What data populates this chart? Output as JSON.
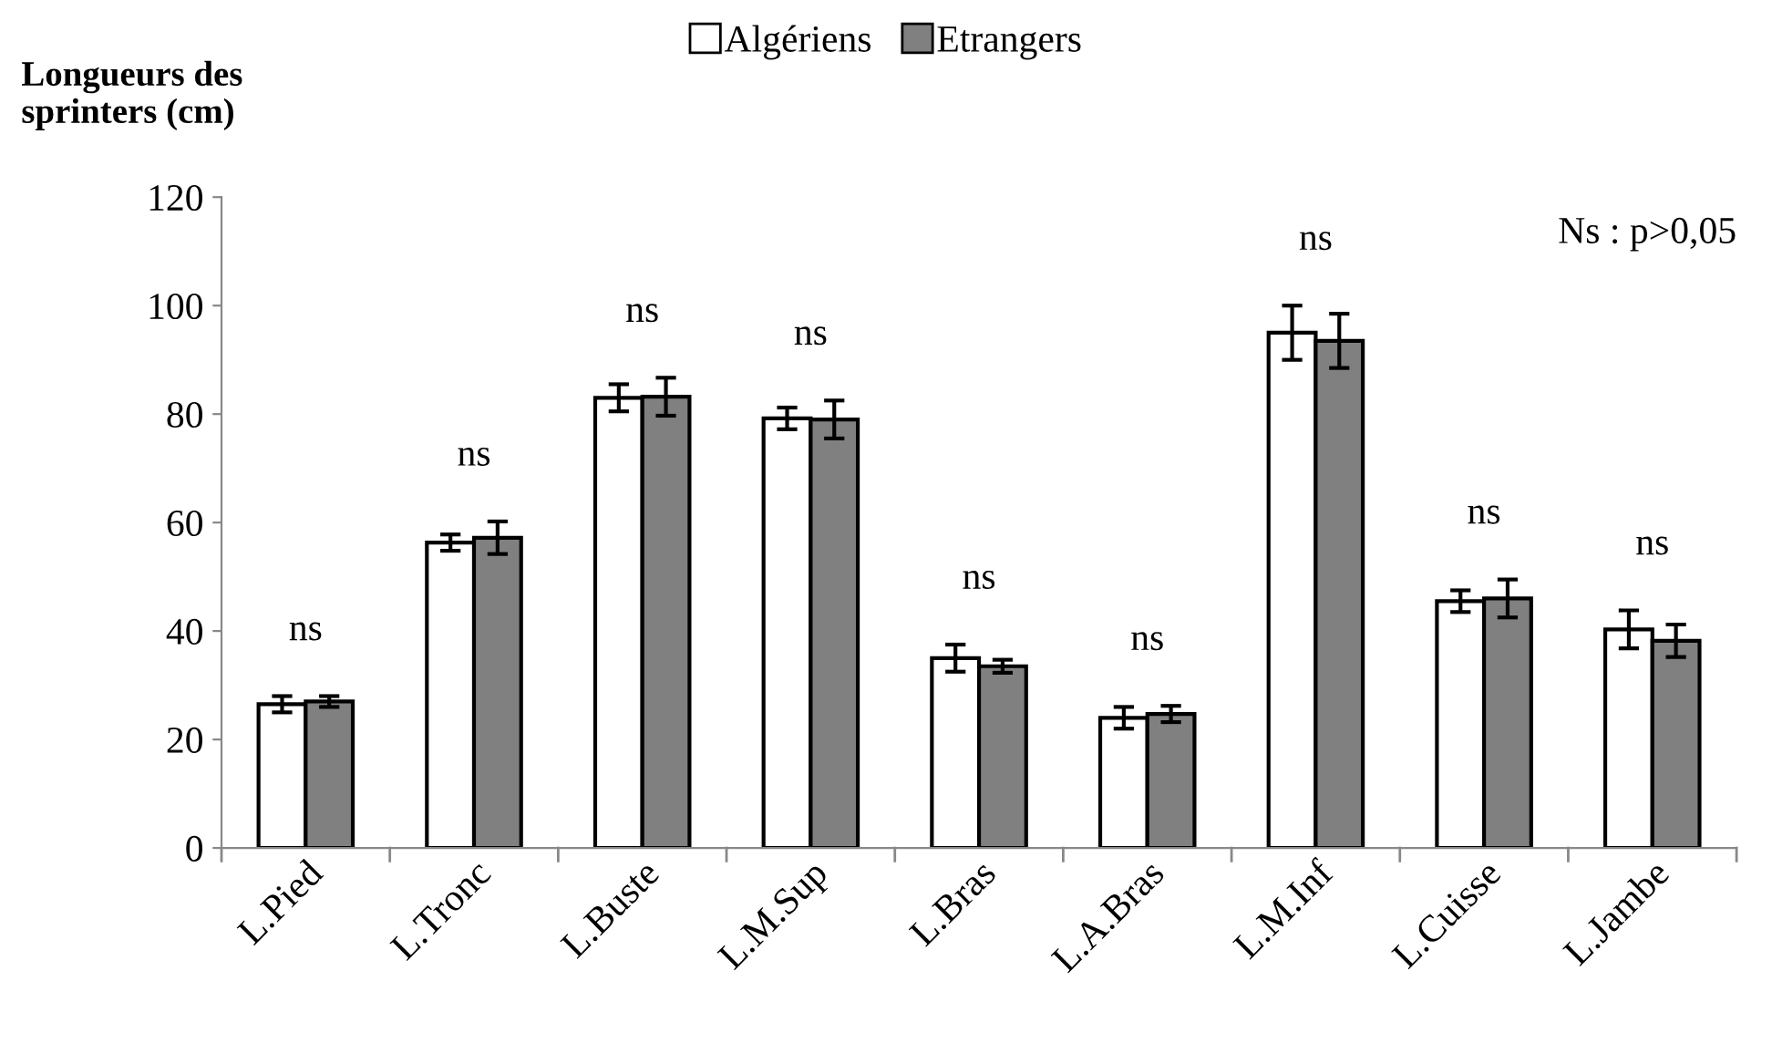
{
  "chart_data": {
    "type": "bar",
    "ylabel": "Longueurs des\nsprinters (cm)",
    "categories": [
      "L.Pied",
      "L.Tronc",
      "L.Buste",
      "L.M.Sup",
      "L.Bras",
      "L.A.Bras",
      "L.M.Inf",
      "L.Cuisse",
      "L.Jambe"
    ],
    "series": [
      {
        "name": "Algériens",
        "color": "#ffffff",
        "values": [
          26.5,
          56.3,
          83,
          79.2,
          35,
          24,
          95,
          45.5,
          40.3
        ],
        "errors": [
          1.5,
          1.5,
          2.5,
          2,
          2.5,
          2,
          5,
          2,
          3.5
        ]
      },
      {
        "name": "Etrangers",
        "color": "#808080",
        "values": [
          27,
          57.2,
          83.2,
          79,
          33.5,
          24.7,
          93.5,
          46,
          38.2
        ],
        "errors": [
          1,
          3,
          3.5,
          3.5,
          1.2,
          1.5,
          5,
          3.5,
          3
        ]
      }
    ],
    "ylim": [
      0,
      120
    ],
    "yticks": [
      0,
      20,
      40,
      60,
      80,
      100,
      120
    ],
    "grid": false,
    "legend": "top",
    "annotations": [
      "ns",
      "ns",
      "ns",
      "ns",
      "ns",
      "ns",
      "ns",
      "ns",
      "ns",
      "Ns : p>0,05"
    ]
  }
}
